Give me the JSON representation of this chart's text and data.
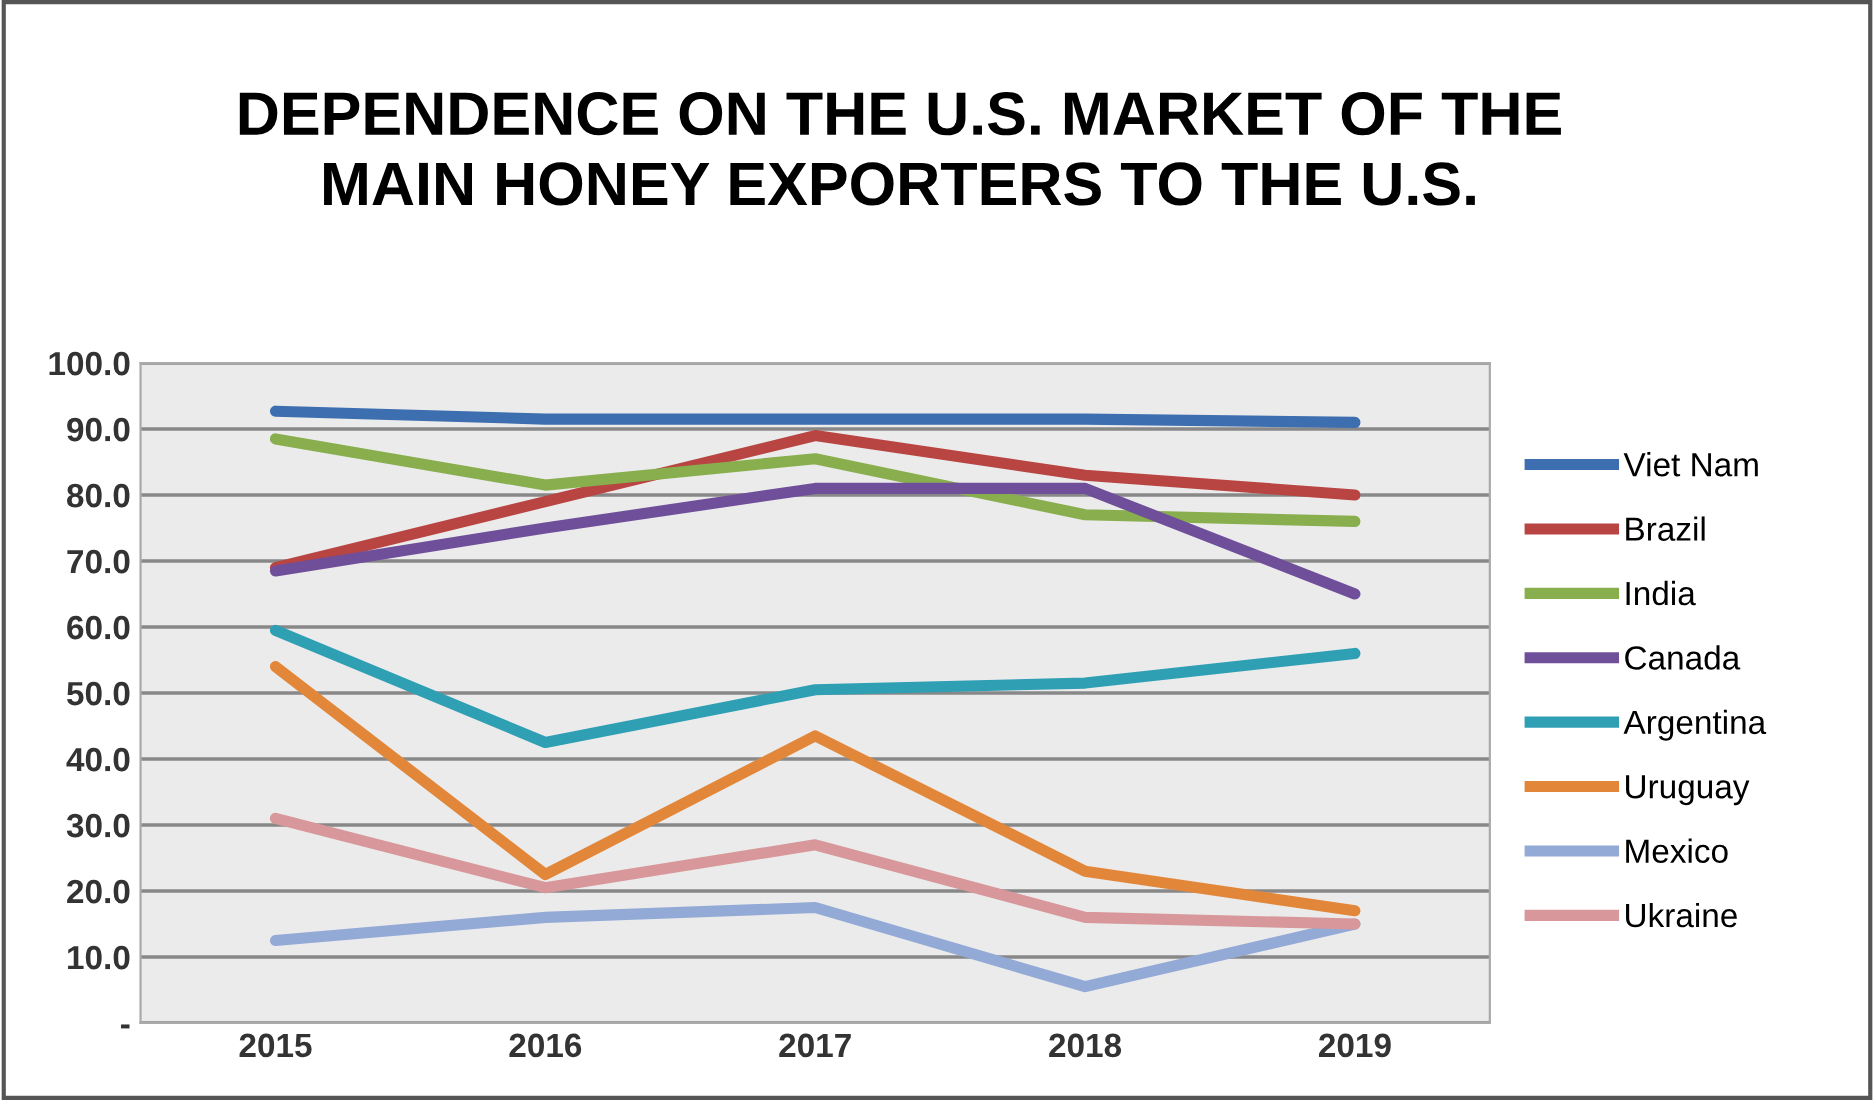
{
  "chart_data": {
    "type": "line",
    "title": "DEPENDENCE ON THE U.S. MARKET OF THE\nMAIN HONEY EXPORTERS TO THE U.S.",
    "categories": [
      "2015",
      "2016",
      "2017",
      "2018",
      "2019"
    ],
    "series": [
      {
        "name": "Viet Nam",
        "color": "#3d6eb0",
        "values": [
          92.7,
          91.5,
          91.5,
          91.5,
          91.0
        ]
      },
      {
        "name": "Brazil",
        "color": "#b94543",
        "values": [
          69.0,
          79.0,
          89.0,
          83.0,
          80.0
        ]
      },
      {
        "name": "India",
        "color": "#89ae4e",
        "values": [
          88.5,
          81.5,
          85.5,
          77.0,
          76.0
        ]
      },
      {
        "name": "Canada",
        "color": "#6f4f9a",
        "values": [
          68.5,
          75.0,
          81.0,
          81.0,
          65.0
        ]
      },
      {
        "name": "Argentina",
        "color": "#2f9fb4",
        "values": [
          59.5,
          42.5,
          50.5,
          51.5,
          56.0
        ]
      },
      {
        "name": "Uruguay",
        "color": "#e2873a",
        "values": [
          54.0,
          22.5,
          43.5,
          23.0,
          17.0
        ]
      },
      {
        "name": "Mexico",
        "color": "#93a9d6",
        "values": [
          12.5,
          16.0,
          17.5,
          5.5,
          15.0
        ]
      },
      {
        "name": "Ukraine",
        "color": "#d8979a",
        "values": [
          31.0,
          20.5,
          27.0,
          16.0,
          15.0
        ]
      }
    ],
    "ylim": [
      0,
      100
    ],
    "yticks": [
      {
        "value": 0,
        "label": "-"
      },
      {
        "value": 10,
        "label": "10.0"
      },
      {
        "value": 20,
        "label": "20.0"
      },
      {
        "value": 30,
        "label": "30.0"
      },
      {
        "value": 40,
        "label": "40.0"
      },
      {
        "value": 50,
        "label": "50.0"
      },
      {
        "value": 60,
        "label": "60.0"
      },
      {
        "value": 70,
        "label": "70.0"
      },
      {
        "value": 80,
        "label": "80.0"
      },
      {
        "value": 90,
        "label": "90.0"
      },
      {
        "value": 100,
        "label": "100.0"
      }
    ],
    "grid": "y",
    "legend": "right",
    "marker": "none",
    "line_style": "solid"
  }
}
